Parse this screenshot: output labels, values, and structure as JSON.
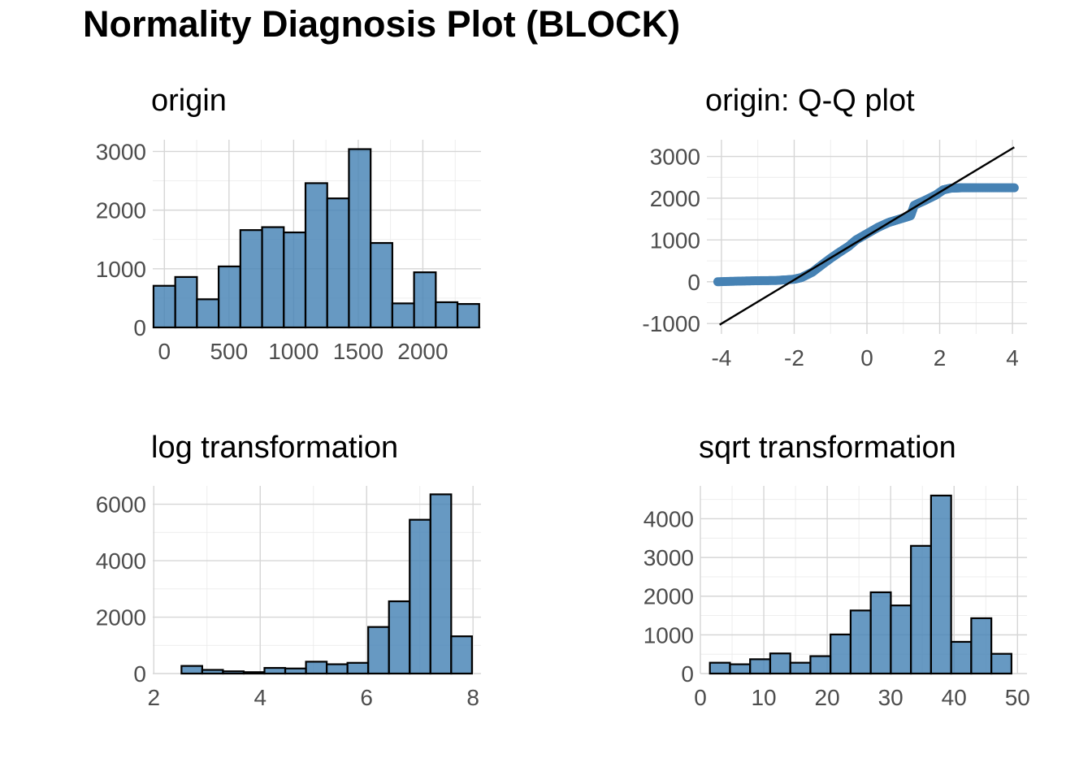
{
  "title": "Normality Diagnosis Plot (BLOCK)",
  "colors": {
    "fill": "#4682b4",
    "outline": "#000000",
    "grid_major": "#d6d6d6",
    "grid_minor": "#ebebeb",
    "tick_text": "#4d4d4d"
  },
  "chart_data": [
    {
      "type": "bar",
      "title": "origin",
      "xlabel": "",
      "ylabel": "",
      "xlim": [
        -90,
        2450
      ],
      "ylim": [
        0,
        3200
      ],
      "x_ticks": [
        0,
        500,
        1000,
        1500,
        2000
      ],
      "x_tick_labels": [
        "0",
        "500",
        "1000",
        "1500",
        "2000"
      ],
      "y_ticks": [
        0,
        1000,
        2000,
        3000
      ],
      "y_tick_labels": [
        "0",
        "1000",
        "2000",
        "3000"
      ],
      "bin_start": -84,
      "bin_width": 168,
      "values": [
        710,
        860,
        480,
        1040,
        1660,
        1710,
        1620,
        2460,
        2200,
        3040,
        1440,
        410,
        940,
        430,
        400
      ]
    },
    {
      "type": "scatter",
      "title": "origin: Q-Q plot",
      "xlabel": "",
      "ylabel": "",
      "xlim": [
        -4.4,
        4.4
      ],
      "ylim": [
        -1250,
        3400
      ],
      "x_ticks": [
        -4,
        -2,
        0,
        2,
        4
      ],
      "x_tick_labels": [
        "-4",
        "-2",
        "0",
        "2",
        "4"
      ],
      "y_ticks": [
        -1000,
        0,
        1000,
        2000,
        3000
      ],
      "y_tick_labels": [
        "-1000",
        "0",
        "1000",
        "2000",
        "3000"
      ],
      "curve_x": [
        -4.1,
        -3.5,
        -3.0,
        -2.5,
        -2.0,
        -1.8,
        -1.5,
        -1.2,
        -1.0,
        -0.8,
        -0.5,
        -0.3,
        0.0,
        0.3,
        0.6,
        0.9,
        1.2,
        1.3,
        1.6,
        1.9,
        2.1,
        2.3,
        2.6,
        3.0,
        3.5,
        4.05
      ],
      "curve_y": [
        0,
        15,
        25,
        30,
        60,
        100,
        230,
        430,
        560,
        680,
        850,
        1000,
        1150,
        1300,
        1420,
        1500,
        1580,
        1830,
        1950,
        2080,
        2200,
        2240,
        2250,
        2250,
        2250,
        2250
      ],
      "line": {
        "x": [
          -4.05,
          4.05
        ],
        "y": [
          -1030,
          3220
        ]
      }
    },
    {
      "type": "bar",
      "title": "log transformation",
      "xlabel": "",
      "ylabel": "",
      "xlim": [
        1.98,
        8.15
      ],
      "ylim": [
        0,
        6650
      ],
      "x_ticks": [
        2,
        4,
        6,
        8
      ],
      "x_tick_labels": [
        "2",
        "4",
        "6",
        "8"
      ],
      "y_ticks": [
        0,
        2000,
        4000,
        6000
      ],
      "y_tick_labels": [
        "0",
        "2000",
        "4000",
        "6000"
      ],
      "bin_start": 2.13,
      "bin_width": 0.39,
      "values": [
        0,
        270,
        130,
        80,
        50,
        200,
        180,
        420,
        330,
        380,
        1650,
        2560,
        5450,
        6350,
        1320
      ]
    },
    {
      "type": "bar",
      "title": "sqrt transformation",
      "xlabel": "",
      "ylabel": "",
      "xlim": [
        0,
        51.5
      ],
      "ylim": [
        0,
        4850
      ],
      "x_ticks": [
        0,
        10,
        20,
        30,
        40,
        50
      ],
      "x_tick_labels": [
        "0",
        "10",
        "20",
        "30",
        "40",
        "50"
      ],
      "y_ticks": [
        0,
        1000,
        2000,
        3000,
        4000
      ],
      "y_tick_labels": [
        "0",
        "1000",
        "2000",
        "3000",
        "4000"
      ],
      "bin_start": 1.5,
      "bin_width": 3.17,
      "values": [
        280,
        240,
        370,
        520,
        280,
        450,
        1010,
        1630,
        2100,
        1760,
        3300,
        4600,
        820,
        1430,
        510
      ]
    }
  ]
}
